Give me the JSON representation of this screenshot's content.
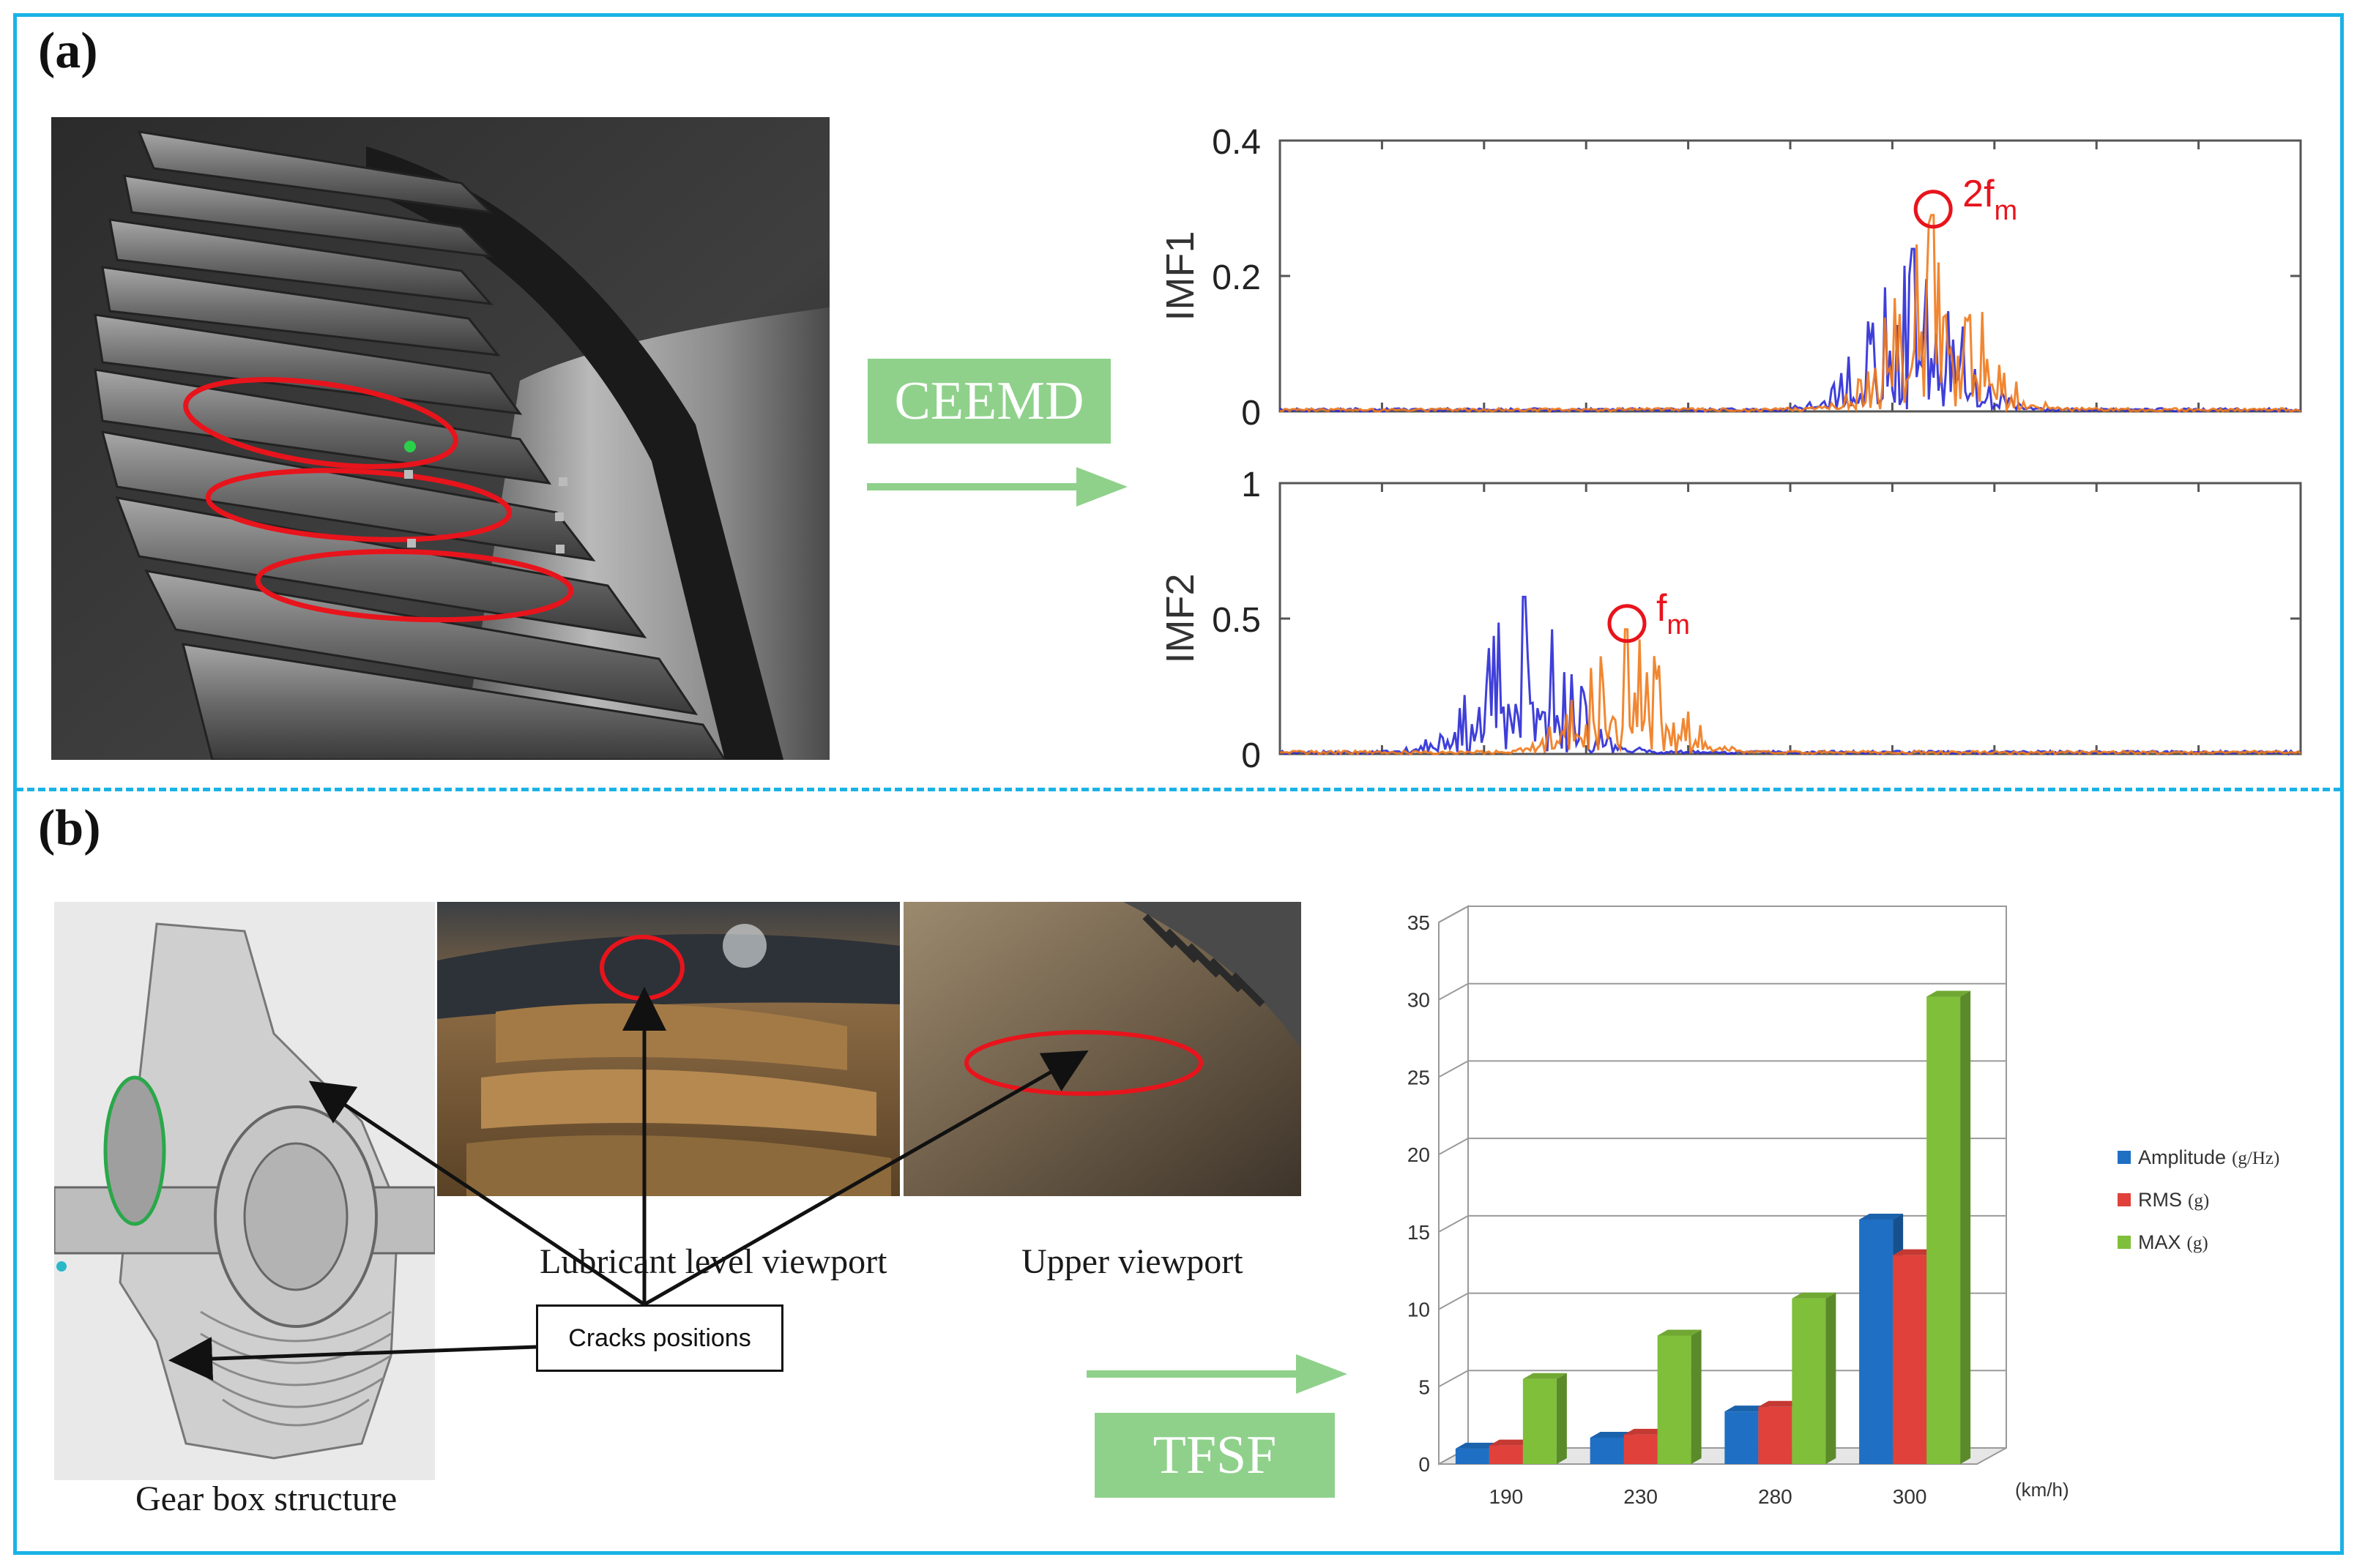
{
  "panels": {
    "a_label": "(a)",
    "b_label": "(b)"
  },
  "methods": {
    "ceemd": "CEEMD",
    "tfsf": "TFSF"
  },
  "captions": {
    "gearbox": "Gear box structure",
    "lubricant": "Lubricant level viewport",
    "upper": "Upper viewport",
    "cracks": "Cracks positions"
  },
  "colors": {
    "frame": "#1ab3e6",
    "arrow": "#8fd18b",
    "highlight": "#e8141c",
    "imf_blue": "#2a2ad6",
    "imf_orange": "#f07a1c"
  },
  "chart_data": [
    {
      "type": "line",
      "ylabel": "IMF1",
      "ylim": [
        0,
        0.4
      ],
      "yticks": [
        "0",
        "0.2",
        "0.4"
      ],
      "annotation": {
        "base": "2f",
        "sub": "m"
      },
      "series": [
        {
          "color": "#2a2ad6",
          "peak_x": 0.62,
          "peak_y": 0.24
        },
        {
          "color": "#f07a1c",
          "peak_x": 0.64,
          "peak_y": 0.29
        }
      ]
    },
    {
      "type": "line",
      "ylabel": "IMF2",
      "ylim": [
        0,
        1
      ],
      "yticks": [
        "0",
        "0.5",
        "1"
      ],
      "annotation": {
        "base": "f",
        "sub": "m"
      },
      "series": [
        {
          "color": "#2a2ad6",
          "peak_x": 0.24,
          "peak_y": 0.58
        },
        {
          "color": "#f07a1c",
          "peak_x": 0.34,
          "peak_y": 0.46
        }
      ]
    },
    {
      "type": "bar",
      "categories": [
        "190",
        "230",
        "280",
        "300"
      ],
      "xunit": "(km/h)",
      "ylim": [
        0,
        35
      ],
      "yticks": [
        "0",
        "5",
        "10",
        "15",
        "20",
        "25",
        "30",
        "35"
      ],
      "series": [
        {
          "name": "Amplitude",
          "unit": "(g/Hz)",
          "color": "#1f6fc4",
          "values": [
            1.0,
            1.7,
            3.4,
            15.8
          ]
        },
        {
          "name": "RMS",
          "unit": "(g)",
          "color": "#e0413a",
          "values": [
            1.2,
            1.9,
            3.7,
            13.5
          ]
        },
        {
          "name": "MAX",
          "unit": "(g)",
          "color": "#7fbf3a",
          "values": [
            5.5,
            8.3,
            10.7,
            30.2
          ]
        }
      ]
    }
  ]
}
